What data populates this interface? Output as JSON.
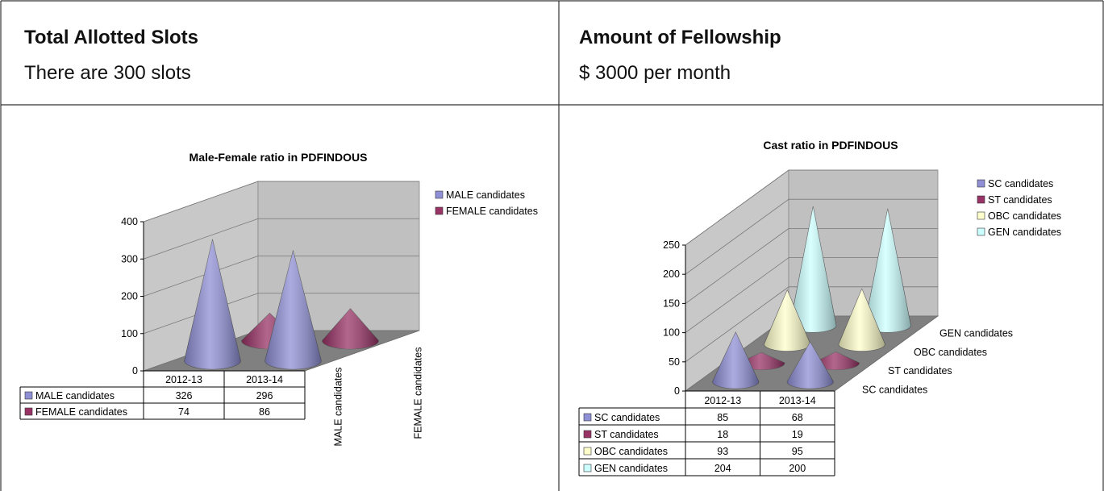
{
  "cells": [
    {
      "title": "Total Allotted Slots",
      "text": "There are 300 slots"
    },
    {
      "title": "Amount of Fellowship",
      "text": "$ 3000 per month"
    }
  ],
  "chart_data": [
    {
      "type": "cone3d",
      "title": "Male-Female ratio in PDFINDOUS",
      "categories": [
        "2012-13",
        "2013-14"
      ],
      "series": [
        {
          "name": "MALE candidates",
          "color": "#8f8fd6",
          "values": [
            326,
            296
          ]
        },
        {
          "name": "FEMALE candidates",
          "color": "#993366",
          "values": [
            74,
            86
          ]
        }
      ],
      "ylim": [
        0,
        400
      ],
      "yticks": [
        0,
        100,
        200,
        300,
        400
      ],
      "grid": true,
      "legend": "right",
      "data_table": true
    },
    {
      "type": "cone3d",
      "title": "Cast ratio in PDFINDOUS",
      "categories": [
        "2012-13",
        "2013-14"
      ],
      "series": [
        {
          "name": "SC candidates",
          "color": "#8f8fd6",
          "values": [
            85,
            68
          ]
        },
        {
          "name": "ST candidates",
          "color": "#993366",
          "values": [
            18,
            19
          ]
        },
        {
          "name": "OBC candidates",
          "color": "#ffffcc",
          "values": [
            93,
            95
          ]
        },
        {
          "name": "GEN candidates",
          "color": "#ccffff",
          "values": [
            204,
            200
          ]
        }
      ],
      "ylim": [
        0,
        250
      ],
      "yticks": [
        0,
        50,
        100,
        150,
        200,
        250
      ],
      "grid": true,
      "legend": "right",
      "data_table": true
    }
  ]
}
